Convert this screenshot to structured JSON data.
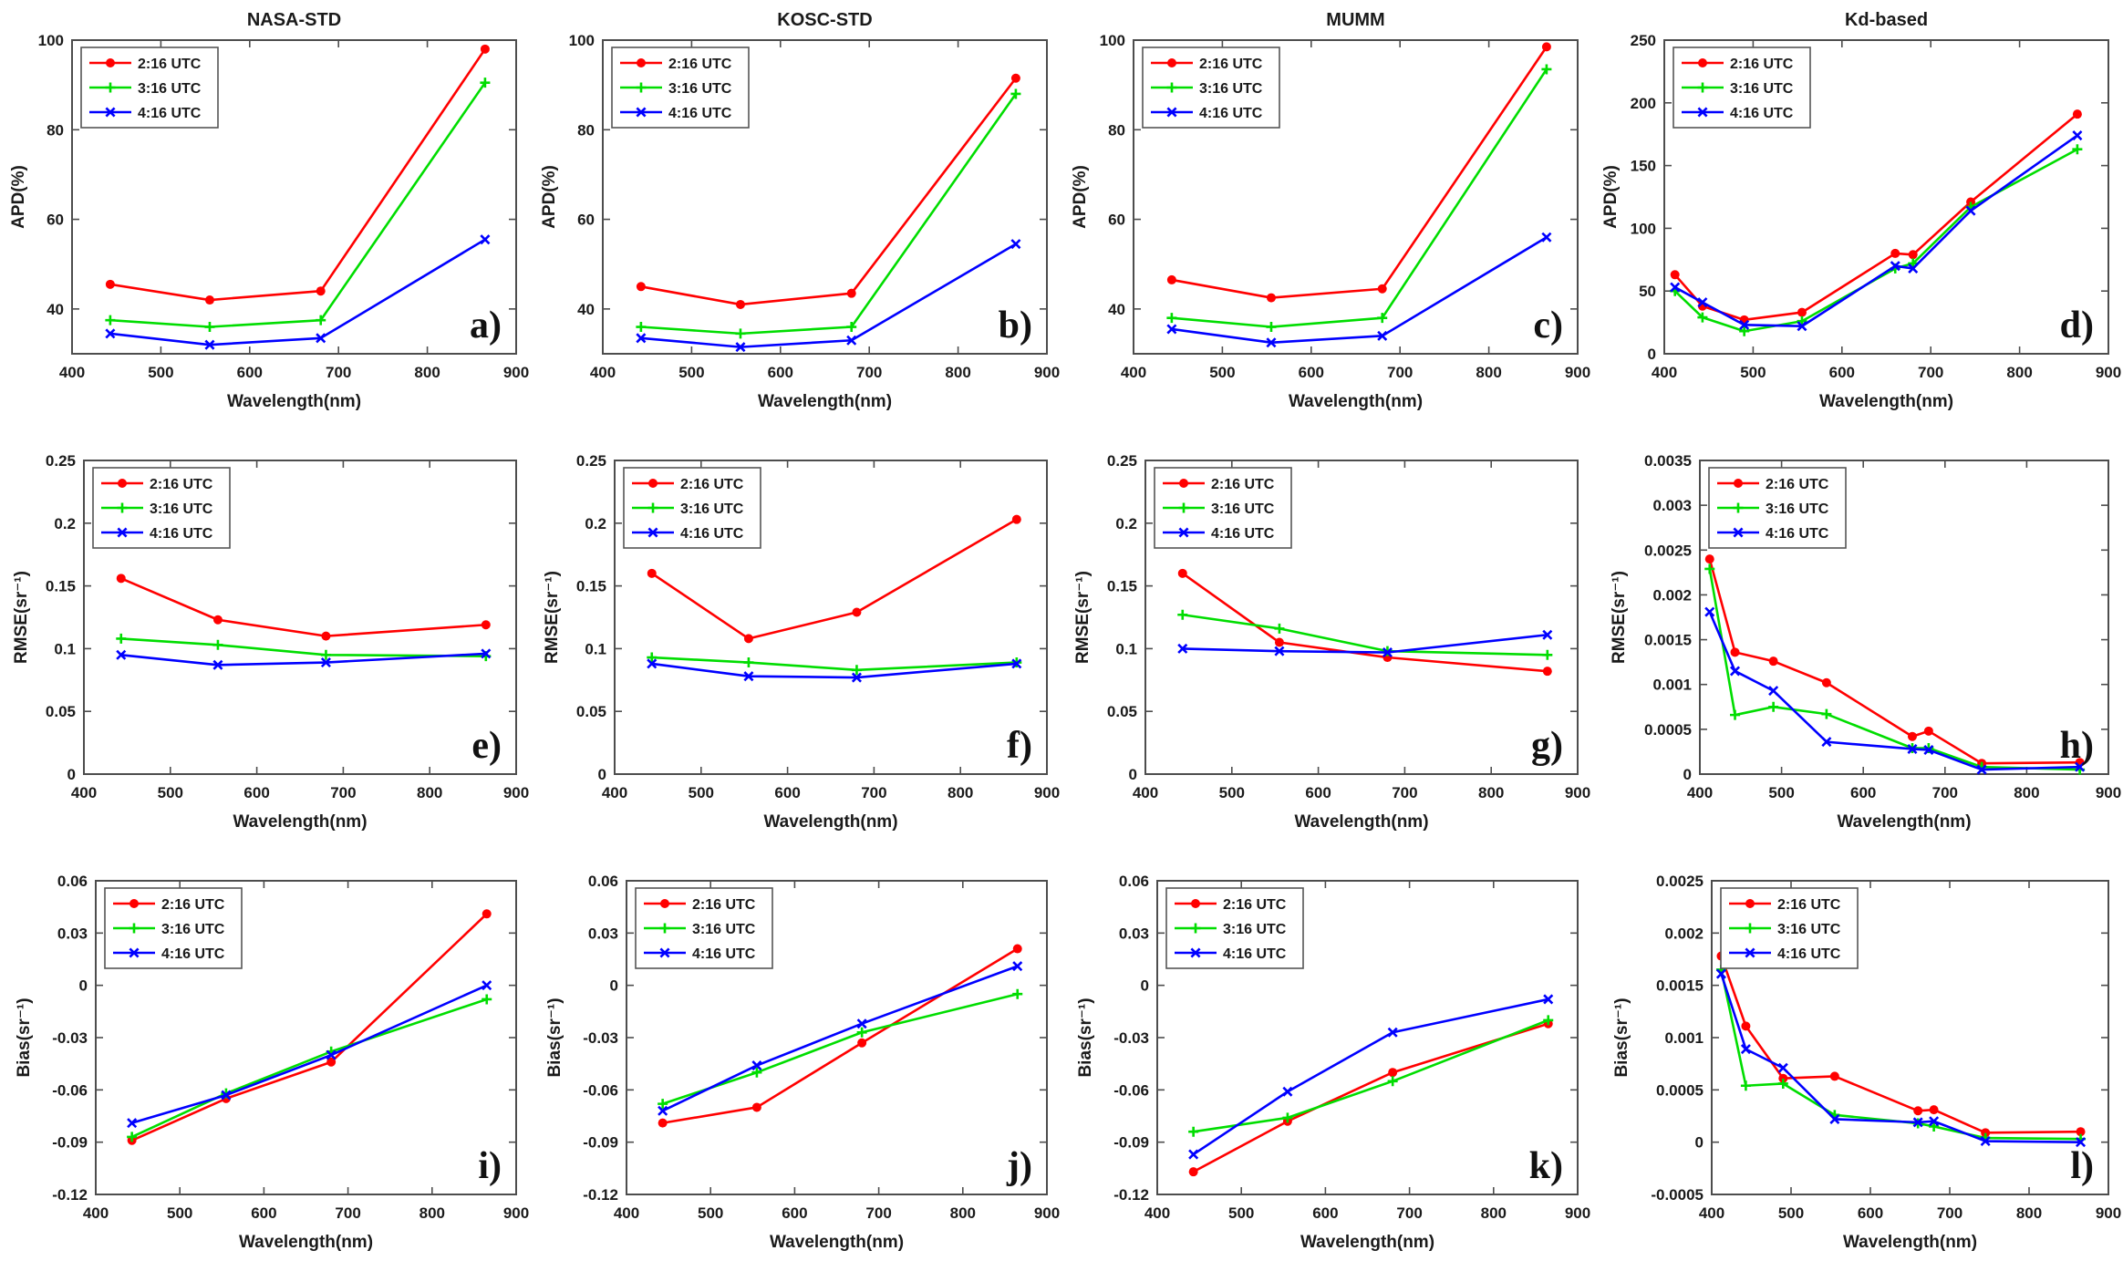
{
  "figure": {
    "background": "#ffffff",
    "axis_color": "#4d4d4d",
    "text_color": "#1a1a1a",
    "xlabel": "Wavelength(nm)",
    "column_titles": [
      "NASA-STD",
      "KOSC-STD",
      "MUMM",
      "Kd-based"
    ],
    "row_metrics": [
      "APD(%)",
      "RMSE(sr⁻¹)",
      "Bias(sr⁻¹)"
    ],
    "legend": [
      {
        "label": "2:16 UTC",
        "color": "#ff0000",
        "marker": "circle"
      },
      {
        "label": "3:16 UTC",
        "color": "#00dd00",
        "marker": "plus"
      },
      {
        "label": "4:16 UTC",
        "color": "#0000ff",
        "marker": "x"
      }
    ]
  },
  "chart_data": [
    {
      "type": "line",
      "panel_label": "a)",
      "title": "NASA-STD",
      "xlabel": "Wavelength(nm)",
      "ylabel": "APD(%)",
      "x": [
        443,
        555,
        680,
        865
      ],
      "xlim": [
        400,
        900
      ],
      "ylim": [
        30,
        100
      ],
      "xticks": [
        400,
        500,
        600,
        700,
        800,
        900
      ],
      "yticks": [
        40,
        60,
        80,
        100
      ],
      "series": [
        {
          "name": "2:16 UTC",
          "values": [
            45.5,
            42.0,
            44.0,
            98.0
          ]
        },
        {
          "name": "3:16 UTC",
          "values": [
            37.5,
            36.0,
            37.5,
            90.5
          ]
        },
        {
          "name": "4:16 UTC",
          "values": [
            34.5,
            32.0,
            33.5,
            55.5
          ]
        }
      ]
    },
    {
      "type": "line",
      "panel_label": "b)",
      "title": "KOSC-STD",
      "xlabel": "Wavelength(nm)",
      "ylabel": "APD(%)",
      "x": [
        443,
        555,
        680,
        865
      ],
      "xlim": [
        400,
        900
      ],
      "ylim": [
        30,
        100
      ],
      "xticks": [
        400,
        500,
        600,
        700,
        800,
        900
      ],
      "yticks": [
        40,
        60,
        80,
        100
      ],
      "series": [
        {
          "name": "2:16 UTC",
          "values": [
            45.0,
            41.0,
            43.5,
            91.5
          ]
        },
        {
          "name": "3:16 UTC",
          "values": [
            36.0,
            34.5,
            36.0,
            88.0
          ]
        },
        {
          "name": "4:16 UTC",
          "values": [
            33.5,
            31.5,
            33.0,
            54.5
          ]
        }
      ]
    },
    {
      "type": "line",
      "panel_label": "c)",
      "title": "MUMM",
      "xlabel": "Wavelength(nm)",
      "ylabel": "APD(%)",
      "x": [
        443,
        555,
        680,
        865
      ],
      "xlim": [
        400,
        900
      ],
      "ylim": [
        30,
        100
      ],
      "xticks": [
        400,
        500,
        600,
        700,
        800,
        900
      ],
      "yticks": [
        40,
        60,
        80,
        100
      ],
      "series": [
        {
          "name": "2:16 UTC",
          "values": [
            46.5,
            42.5,
            44.5,
            98.5
          ]
        },
        {
          "name": "3:16 UTC",
          "values": [
            38.0,
            36.0,
            38.0,
            93.5
          ]
        },
        {
          "name": "4:16 UTC",
          "values": [
            35.5,
            32.5,
            34.0,
            56.0
          ]
        }
      ]
    },
    {
      "type": "line",
      "panel_label": "d)",
      "title": "Kd-based",
      "xlabel": "Wavelength(nm)",
      "ylabel": "APD(%)",
      "x": [
        412,
        443,
        490,
        555,
        660,
        680,
        745,
        865
      ],
      "xlim": [
        400,
        900
      ],
      "ylim": [
        0,
        250
      ],
      "xticks": [
        400,
        500,
        600,
        700,
        800,
        900
      ],
      "yticks": [
        0,
        50,
        100,
        150,
        200,
        250
      ],
      "series": [
        {
          "name": "2:16 UTC",
          "values": [
            63,
            38,
            27,
            33,
            80,
            79,
            121,
            191
          ]
        },
        {
          "name": "3:16 UTC",
          "values": [
            50,
            29,
            18,
            26,
            68,
            72,
            117,
            163
          ]
        },
        {
          "name": "4:16 UTC",
          "values": [
            53,
            41,
            23,
            22,
            70,
            68,
            114,
            174
          ]
        }
      ]
    },
    {
      "type": "line",
      "panel_label": "e)",
      "title": "",
      "xlabel": "Wavelength(nm)",
      "ylabel": "RMSE(sr⁻¹)",
      "x": [
        443,
        555,
        680,
        865
      ],
      "xlim": [
        400,
        900
      ],
      "ylim": [
        0,
        0.25
      ],
      "xticks": [
        400,
        500,
        600,
        700,
        800,
        900
      ],
      "yticks": [
        0,
        0.05,
        0.1,
        0.15,
        0.2,
        0.25
      ],
      "series": [
        {
          "name": "2:16 UTC",
          "values": [
            0.156,
            0.123,
            0.11,
            0.119
          ]
        },
        {
          "name": "3:16 UTC",
          "values": [
            0.108,
            0.103,
            0.095,
            0.094
          ]
        },
        {
          "name": "4:16 UTC",
          "values": [
            0.095,
            0.087,
            0.089,
            0.096
          ]
        }
      ]
    },
    {
      "type": "line",
      "panel_label": "f)",
      "title": "",
      "xlabel": "Wavelength(nm)",
      "ylabel": "RMSE(sr⁻¹)",
      "x": [
        443,
        555,
        680,
        865
      ],
      "xlim": [
        400,
        900
      ],
      "ylim": [
        0,
        0.25
      ],
      "xticks": [
        400,
        500,
        600,
        700,
        800,
        900
      ],
      "yticks": [
        0,
        0.05,
        0.1,
        0.15,
        0.2,
        0.25
      ],
      "series": [
        {
          "name": "2:16 UTC",
          "values": [
            0.16,
            0.108,
            0.129,
            0.203
          ]
        },
        {
          "name": "3:16 UTC",
          "values": [
            0.093,
            0.089,
            0.083,
            0.089
          ]
        },
        {
          "name": "4:16 UTC",
          "values": [
            0.088,
            0.078,
            0.077,
            0.088
          ]
        }
      ]
    },
    {
      "type": "line",
      "panel_label": "g)",
      "title": "",
      "xlabel": "Wavelength(nm)",
      "ylabel": "RMSE(sr⁻¹)",
      "x": [
        443,
        555,
        680,
        865
      ],
      "xlim": [
        400,
        900
      ],
      "ylim": [
        0,
        0.25
      ],
      "xticks": [
        400,
        500,
        600,
        700,
        800,
        900
      ],
      "yticks": [
        0,
        0.05,
        0.1,
        0.15,
        0.2,
        0.25
      ],
      "series": [
        {
          "name": "2:16 UTC",
          "values": [
            0.16,
            0.105,
            0.093,
            0.082
          ]
        },
        {
          "name": "3:16 UTC",
          "values": [
            0.127,
            0.116,
            0.098,
            0.095
          ]
        },
        {
          "name": "4:16 UTC",
          "values": [
            0.1,
            0.098,
            0.097,
            0.111
          ]
        }
      ]
    },
    {
      "type": "line",
      "panel_label": "h)",
      "title": "",
      "xlabel": "Wavelength(nm)",
      "ylabel": "RMSE(sr⁻¹)",
      "x": [
        412,
        443,
        490,
        555,
        660,
        680,
        745,
        865
      ],
      "xlim": [
        400,
        900
      ],
      "ylim": [
        0,
        0.0035
      ],
      "xticks": [
        400,
        500,
        600,
        700,
        800,
        900
      ],
      "yticks": [
        0,
        0.0005,
        0.001,
        0.0015,
        0.002,
        0.0025,
        0.003,
        0.0035
      ],
      "series": [
        {
          "name": "2:16 UTC",
          "values": [
            0.0024,
            0.00136,
            0.00126,
            0.00102,
            0.00042,
            0.00048,
            0.00012,
            0.00013
          ]
        },
        {
          "name": "3:16 UTC",
          "values": [
            0.00229,
            0.00066,
            0.00075,
            0.00067,
            0.00029,
            0.00029,
            8e-05,
            5e-05
          ]
        },
        {
          "name": "4:16 UTC",
          "values": [
            0.00181,
            0.00115,
            0.00093,
            0.00036,
            0.00028,
            0.00027,
            5e-05,
            8e-05
          ]
        }
      ]
    },
    {
      "type": "line",
      "panel_label": "i)",
      "title": "",
      "xlabel": "Wavelength(nm)",
      "ylabel": "Bias(sr⁻¹)",
      "x": [
        443,
        555,
        680,
        865
      ],
      "xlim": [
        400,
        900
      ],
      "ylim": [
        -0.12,
        0.06
      ],
      "xticks": [
        400,
        500,
        600,
        700,
        800,
        900
      ],
      "yticks": [
        -0.12,
        -0.09,
        -0.06,
        -0.03,
        0,
        0.03,
        0.06
      ],
      "series": [
        {
          "name": "2:16 UTC",
          "values": [
            -0.089,
            -0.065,
            -0.044,
            0.041
          ]
        },
        {
          "name": "3:16 UTC",
          "values": [
            -0.087,
            -0.062,
            -0.038,
            -0.008
          ]
        },
        {
          "name": "4:16 UTC",
          "values": [
            -0.079,
            -0.063,
            -0.04,
            0.0
          ]
        }
      ]
    },
    {
      "type": "line",
      "panel_label": "j)",
      "title": "",
      "xlabel": "Wavelength(nm)",
      "ylabel": "Bias(sr⁻¹)",
      "x": [
        443,
        555,
        680,
        865
      ],
      "xlim": [
        400,
        900
      ],
      "ylim": [
        -0.12,
        0.06
      ],
      "xticks": [
        400,
        500,
        600,
        700,
        800,
        900
      ],
      "yticks": [
        -0.12,
        -0.09,
        -0.06,
        -0.03,
        0,
        0.03,
        0.06
      ],
      "series": [
        {
          "name": "2:16 UTC",
          "values": [
            -0.079,
            -0.07,
            -0.033,
            0.021
          ]
        },
        {
          "name": "3:16 UTC",
          "values": [
            -0.068,
            -0.05,
            -0.027,
            -0.005
          ]
        },
        {
          "name": "4:16 UTC",
          "values": [
            -0.072,
            -0.046,
            -0.022,
            0.011
          ]
        }
      ]
    },
    {
      "type": "line",
      "panel_label": "k)",
      "title": "",
      "xlabel": "Wavelength(nm)",
      "ylabel": "Bias(sr⁻¹)",
      "x": [
        443,
        555,
        680,
        865
      ],
      "xlim": [
        400,
        900
      ],
      "ylim": [
        -0.12,
        0.06
      ],
      "xticks": [
        400,
        500,
        600,
        700,
        800,
        900
      ],
      "yticks": [
        -0.12,
        -0.09,
        -0.06,
        -0.03,
        0,
        0.03,
        0.06
      ],
      "series": [
        {
          "name": "2:16 UTC",
          "values": [
            -0.107,
            -0.078,
            -0.05,
            -0.022
          ]
        },
        {
          "name": "3:16 UTC",
          "values": [
            -0.084,
            -0.076,
            -0.055,
            -0.02
          ]
        },
        {
          "name": "4:16 UTC",
          "values": [
            -0.097,
            -0.061,
            -0.027,
            -0.008
          ]
        }
      ]
    },
    {
      "type": "line",
      "panel_label": "l)",
      "title": "",
      "xlabel": "Wavelength(nm)",
      "ylabel": "Bias(sr⁻¹)",
      "x": [
        412,
        443,
        490,
        555,
        660,
        680,
        745,
        865
      ],
      "xlim": [
        400,
        900
      ],
      "ylim": [
        -0.0005,
        0.0025
      ],
      "xticks": [
        400,
        500,
        600,
        700,
        800,
        900
      ],
      "yticks": [
        -0.0005,
        0,
        0.0005,
        0.001,
        0.0015,
        0.002,
        0.0025
      ],
      "series": [
        {
          "name": "2:16 UTC",
          "values": [
            0.00178,
            0.00111,
            0.00061,
            0.00063,
            0.0003,
            0.00031,
            9e-05,
            0.0001
          ]
        },
        {
          "name": "3:16 UTC",
          "values": [
            0.00165,
            0.00054,
            0.00056,
            0.00026,
            0.00018,
            0.00015,
            4e-05,
            3e-05
          ]
        },
        {
          "name": "4:16 UTC",
          "values": [
            0.00161,
            0.00089,
            0.00071,
            0.00022,
            0.00019,
            0.0002,
            1e-05,
            0.0
          ]
        }
      ]
    }
  ]
}
